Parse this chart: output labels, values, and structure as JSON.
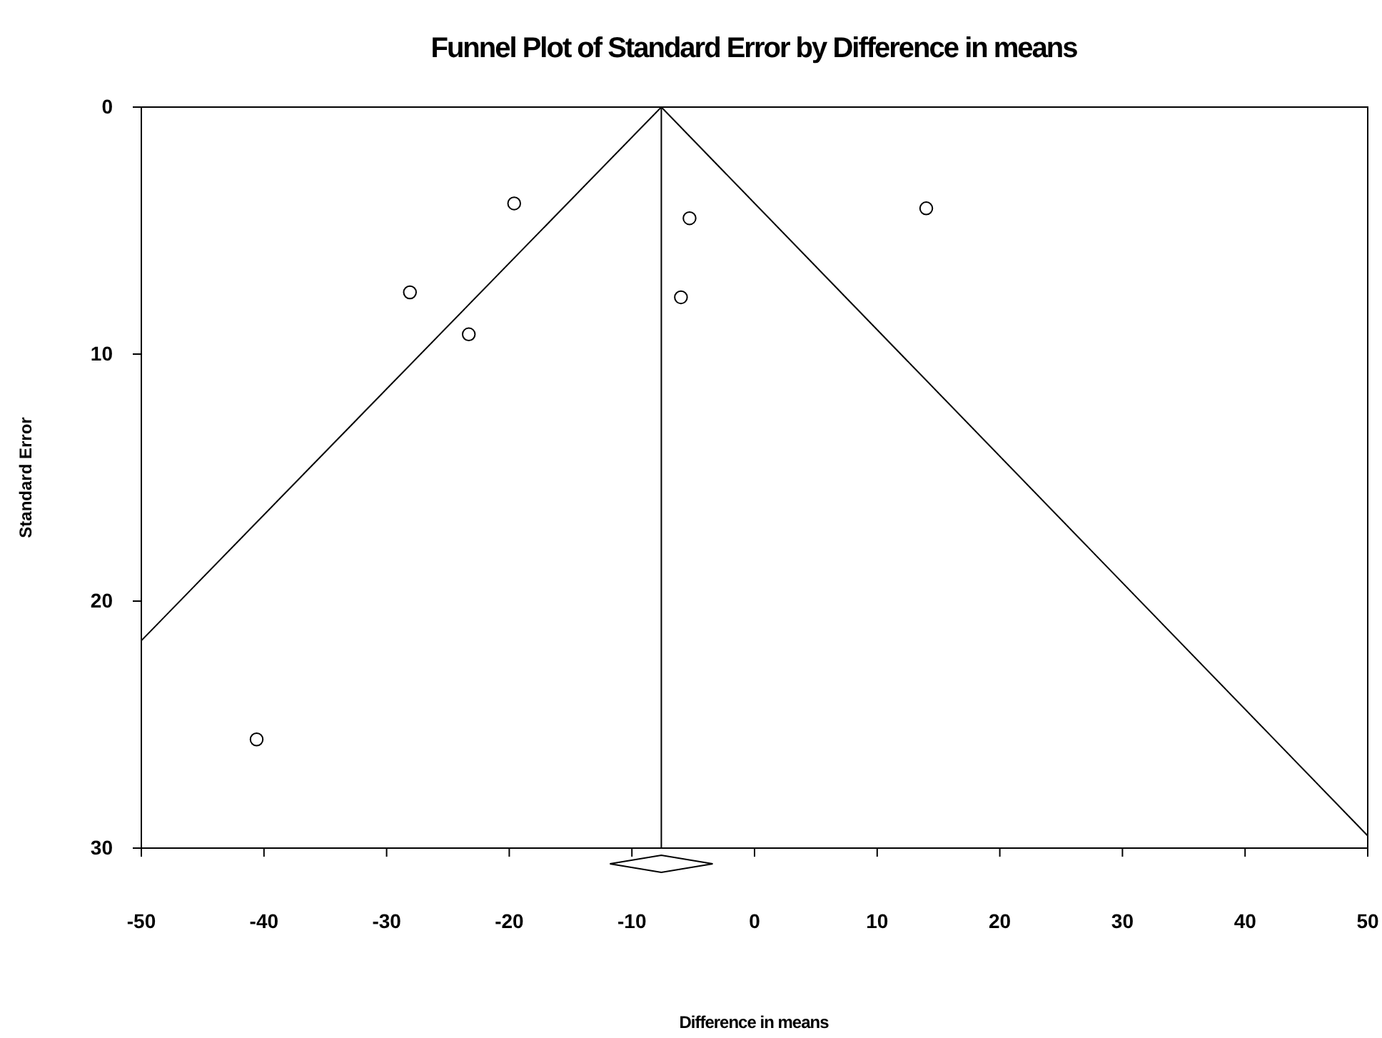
{
  "chart_data": {
    "type": "scatter",
    "title": "Funnel Plot of Standard Error by Difference in means",
    "xlabel": "Difference in means",
    "ylabel": "Standard Error",
    "xlim": [
      -50,
      50
    ],
    "xticks": [
      -50,
      -40,
      -30,
      -20,
      -10,
      0,
      10,
      20,
      30,
      40,
      50
    ],
    "ylim": [
      30,
      0
    ],
    "yticks": [
      0,
      10,
      20,
      30
    ],
    "grid": false,
    "series": [
      {
        "marker": "circle",
        "color": "#000000",
        "x": [
          -19.6,
          -28.1,
          -23.3,
          -5.3,
          -6.0,
          14.0,
          -40.6
        ],
        "values": [
          3.9,
          7.5,
          9.2,
          4.5,
          7.7,
          4.1,
          25.6
        ]
      },
      {
        "type": "line",
        "marker": "none",
        "color": "#000000",
        "line_style": "solid",
        "x": [
          -50,
          -7.6,
          50
        ],
        "values": [
          21.6,
          0,
          29.5
        ]
      }
    ],
    "ref_lines": [
      {
        "axis": "x",
        "value": -7.6,
        "color": "#000000"
      }
    ]
  }
}
